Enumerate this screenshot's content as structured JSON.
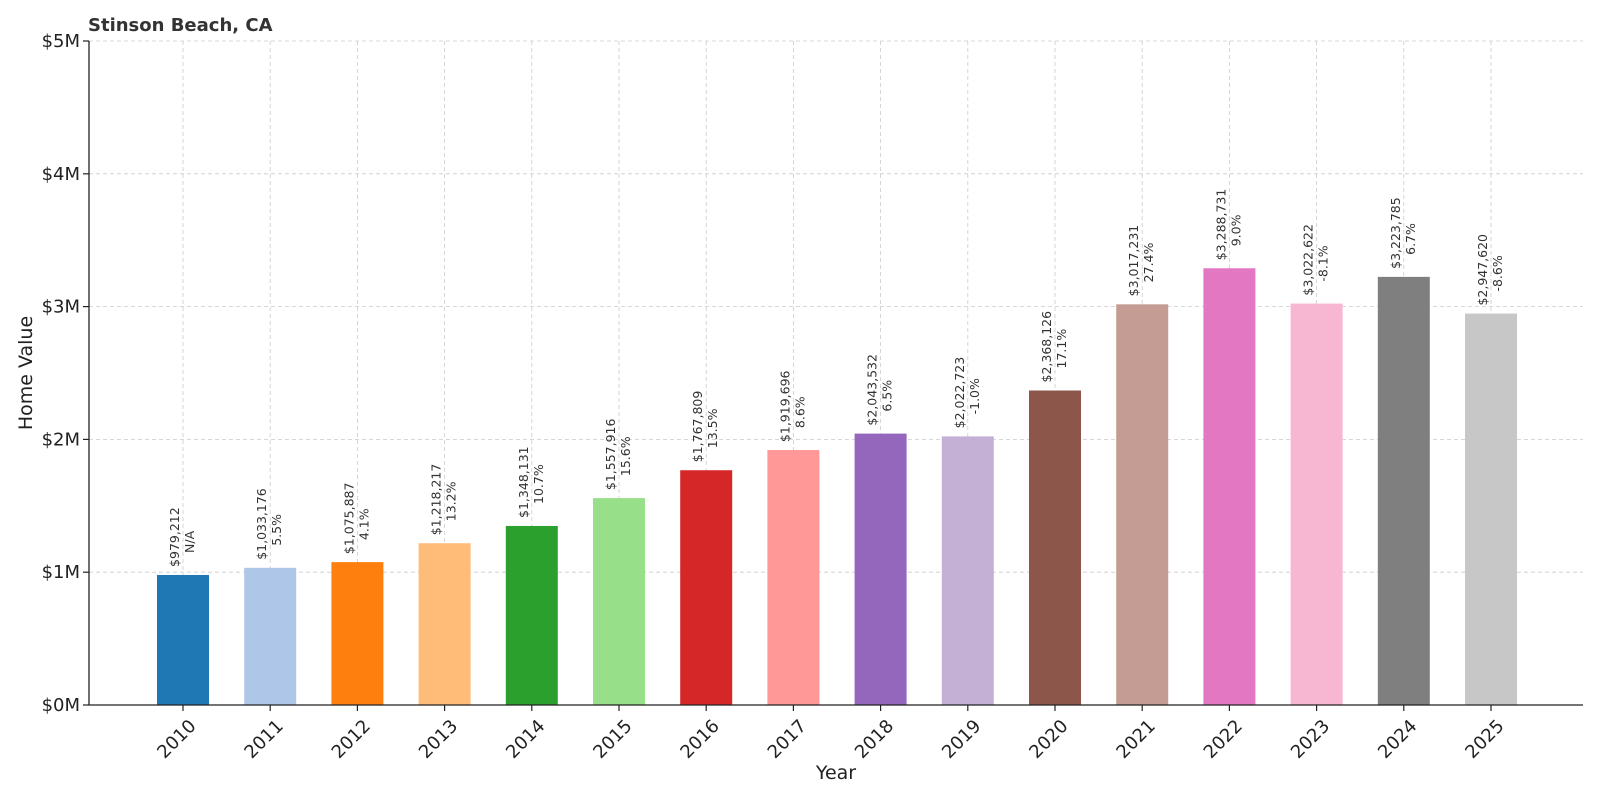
{
  "chart_data": {
    "type": "bar",
    "title": "Stinson Beach, CA",
    "xlabel": "Year",
    "ylabel": "Home Value",
    "ylim": [
      0,
      5000000
    ],
    "yticks": [
      0,
      1000000,
      2000000,
      3000000,
      4000000,
      5000000
    ],
    "ytick_labels": [
      "$0M",
      "$1M",
      "$2M",
      "$3M",
      "$4M",
      "$5M"
    ],
    "grid": true,
    "categories": [
      "2010",
      "2011",
      "2012",
      "2013",
      "2014",
      "2015",
      "2016",
      "2017",
      "2018",
      "2019",
      "2020",
      "2021",
      "2022",
      "2023",
      "2024",
      "2025"
    ],
    "values": [
      979212,
      1033176,
      1075887,
      1218217,
      1348131,
      1557916,
      1767809,
      1919696,
      2043532,
      2022723,
      2368126,
      3017231,
      3288731,
      3022622,
      3223785,
      2947620
    ],
    "value_labels": [
      "$979,212",
      "$1,033,176",
      "$1,075,887",
      "$1,218,217",
      "$1,348,131",
      "$1,557,916",
      "$1,767,809",
      "$1,919,696",
      "$2,043,532",
      "$2,022,723",
      "$2,368,126",
      "$3,017,231",
      "$3,288,731",
      "$3,022,622",
      "$3,223,785",
      "$2,947,620"
    ],
    "change_labels": [
      "N/A",
      "5.5%",
      "4.1%",
      "13.2%",
      "10.7%",
      "15.6%",
      "13.5%",
      "8.6%",
      "6.5%",
      "-1.0%",
      "17.1%",
      "27.4%",
      "9.0%",
      "-8.1%",
      "6.7%",
      "-8.6%"
    ],
    "colors": [
      "#1f77b4",
      "#aec7e8",
      "#ff7f0e",
      "#ffbb78",
      "#2ca02c",
      "#98df8a",
      "#d62728",
      "#ff9896",
      "#9467bd",
      "#c5b0d5",
      "#8c564b",
      "#c49c94",
      "#e377c2",
      "#f7b6d2",
      "#7f7f7f",
      "#c7c7c7"
    ]
  }
}
